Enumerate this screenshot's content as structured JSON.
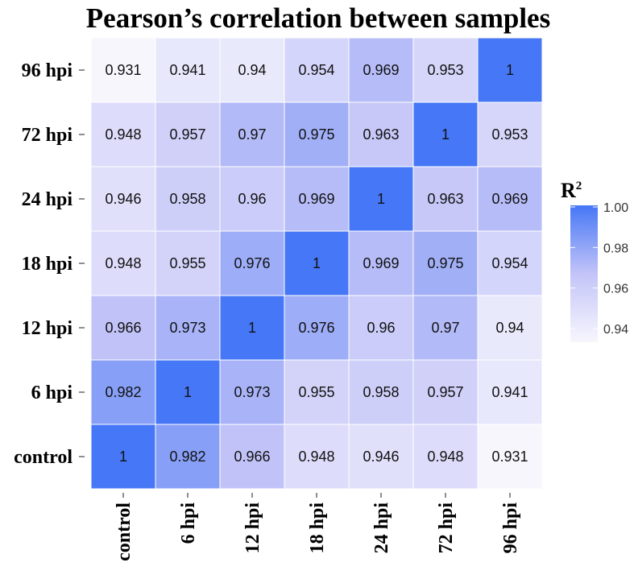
{
  "chart_data": {
    "type": "heatmap",
    "title": "Pearson’s correlation between samples",
    "x_categories": [
      "control",
      "6 hpi",
      "12 hpi",
      "18 hpi",
      "24 hpi",
      "72 hpi",
      "96 hpi"
    ],
    "y_categories": [
      "control",
      "6 hpi",
      "12 hpi",
      "18 hpi",
      "24 hpi",
      "72 hpi",
      "96 hpi"
    ],
    "matrix": [
      [
        1,
        0.982,
        0.966,
        0.948,
        0.946,
        0.948,
        0.931
      ],
      [
        0.982,
        1,
        0.973,
        0.955,
        0.958,
        0.957,
        0.941
      ],
      [
        0.966,
        0.973,
        1,
        0.976,
        0.96,
        0.97,
        0.94
      ],
      [
        0.948,
        0.955,
        0.976,
        1,
        0.969,
        0.975,
        0.954
      ],
      [
        0.946,
        0.958,
        0.96,
        0.969,
        1,
        0.963,
        0.969
      ],
      [
        0.948,
        0.957,
        0.97,
        0.975,
        0.963,
        1,
        0.953
      ],
      [
        0.931,
        0.941,
        0.94,
        0.954,
        0.969,
        0.953,
        1
      ]
    ],
    "legend": {
      "title": "R",
      "title_superscript": "2",
      "ticks": [
        1.0,
        0.98,
        0.96,
        0.94
      ],
      "tick_labels": [
        "1.00",
        "0.98",
        "0.96",
        "0.94"
      ],
      "range": [
        0.931,
        1.0
      ],
      "placement": "right"
    },
    "colors": {
      "low": "#f7f6fd",
      "mid": "#c3c4f8",
      "high": "#4677f6"
    }
  }
}
